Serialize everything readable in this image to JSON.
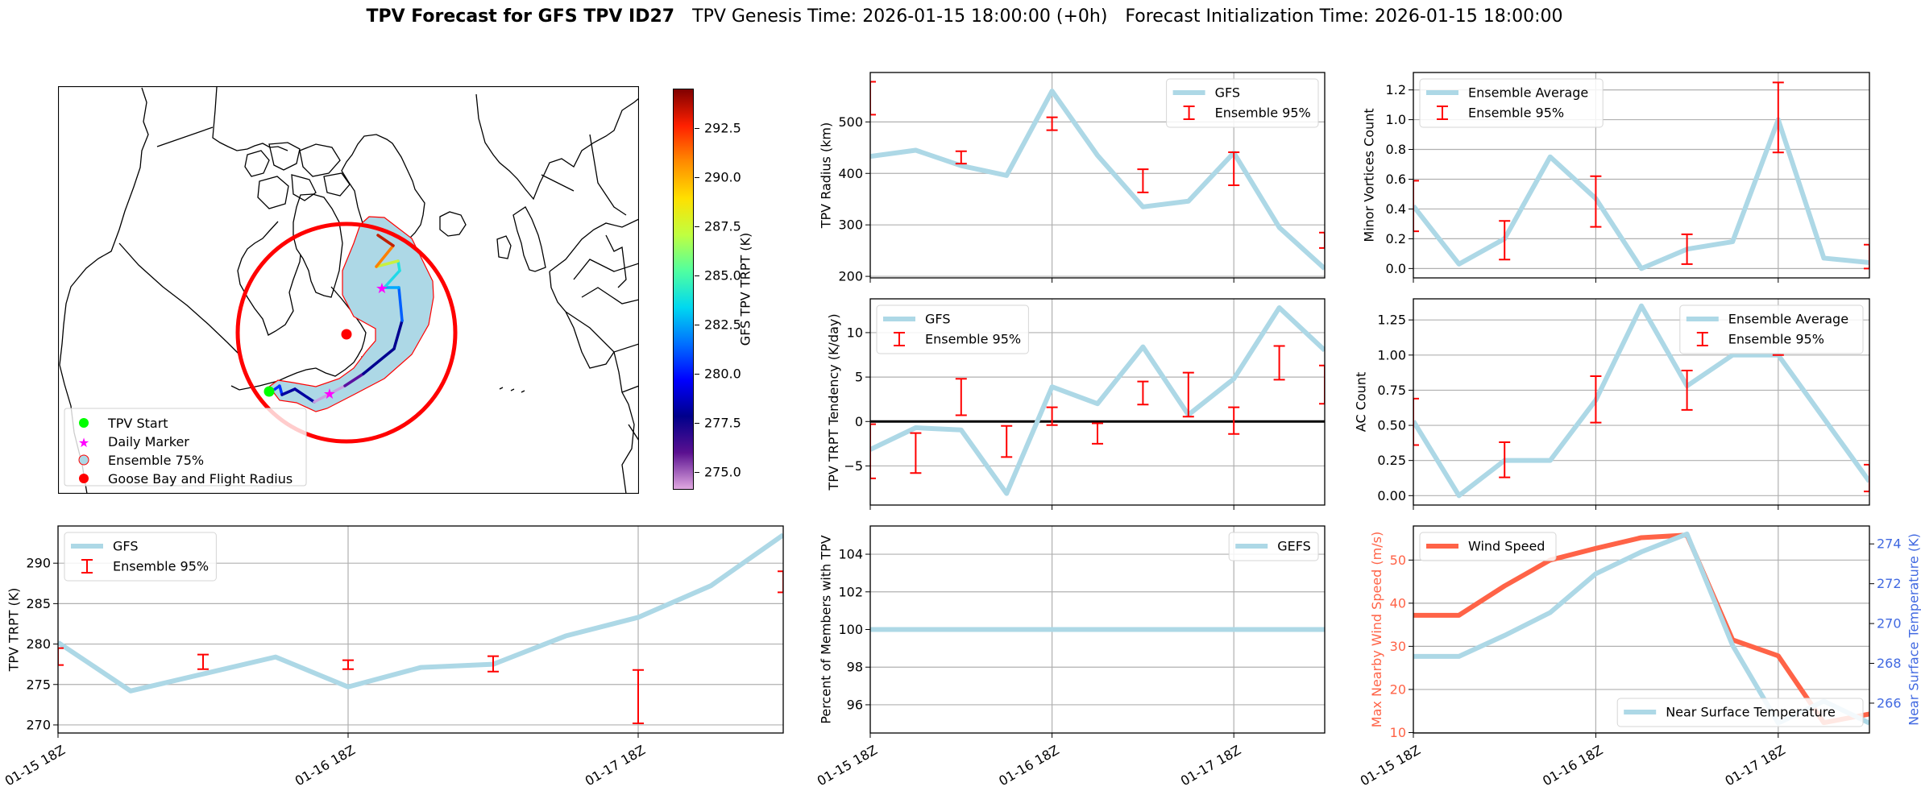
{
  "title": {
    "main": "TPV Forecast for GFS TPV ID27",
    "genesis": "TPV Genesis Time: 2026-01-15 18:00:00 (+0h)",
    "init": "Forecast Initialization Time: 2026-01-15 18:00:00"
  },
  "map": {
    "legend": [
      "TPV Start",
      "Daily Marker",
      "Ensemble 75%",
      "Goose Bay and Flight Radius"
    ],
    "colors": {
      "start": "#00ff00",
      "daily_marker": "#ff00ff",
      "ensemble_fill": "#add8e6",
      "ensemble_edge": "#ff0000",
      "goose_bay": "#ff0000"
    },
    "track_segment_colors": [
      "#0030ff",
      "#0000a0",
      "#0000a0",
      "#c8a0e0",
      "#c8a0e0",
      "#5a10a0",
      "#000090",
      "#000090",
      "#0060ff",
      "#00a8ff",
      "#20d8e8",
      "#20e0e0",
      "#c8f040",
      "#ff8000",
      "#c02000"
    ]
  },
  "colorbar": {
    "label": "GFS TPV TRPT (K)",
    "range": [
      274.1,
      294.5
    ],
    "ticks": [
      275.0,
      277.5,
      280.0,
      282.5,
      285.0,
      287.5,
      290.0,
      292.5
    ],
    "ticklabels": [
      "275.0",
      "277.5",
      "280.0",
      "282.5",
      "285.0",
      "287.5",
      "290.0",
      "292.5"
    ],
    "colors": [
      "#e0a8e0",
      "#5a1090",
      "#00008b",
      "#0000ff",
      "#0070ff",
      "#00d8f0",
      "#50ffa0",
      "#c0ff40",
      "#ffe000",
      "#ff8c00",
      "#ff2000",
      "#800000"
    ]
  },
  "chart_data": [
    {
      "type": "line",
      "ylabel": "TPV Radius (km)",
      "xlim": [
        "2026-01-15 18:00",
        "2026-01-18 06:00"
      ],
      "xticks": [
        "2026-01-15 18:00",
        "2026-01-16 18:00",
        "2026-01-17 18:00"
      ],
      "ylim": [
        197,
        596
      ],
      "yticks": [
        200,
        300,
        400,
        500
      ],
      "yticklabels": [
        "200",
        "300",
        "400",
        "500"
      ],
      "grid": true,
      "legend": "upper right",
      "series": [
        {
          "name": "GFS",
          "color": "#add8e6",
          "x": [
            "2026-01-15 18:00",
            "2026-01-16 00:00",
            "2026-01-16 06:00",
            "2026-01-16 12:00",
            "2026-01-16 18:00",
            "2026-01-17 00:00",
            "2026-01-17 06:00",
            "2026-01-17 12:00",
            "2026-01-17 18:00",
            "2026-01-18 00:00",
            "2026-01-18 06:00"
          ],
          "values": [
            433,
            445,
            415,
            396,
            560,
            435,
            335,
            346,
            440,
            295,
            215
          ]
        }
      ],
      "errorbars": {
        "name": "Ensemble 95%",
        "color": "#ff0000",
        "x": [
          "2026-01-15 18:00",
          "2026-01-16 06:00",
          "2026-01-16 18:00",
          "2026-01-17 06:00",
          "2026-01-17 18:00",
          "2026-01-18 06:00"
        ],
        "low": [
          514,
          419,
          484,
          363,
          377,
          255
        ],
        "high": [
          578,
          443,
          509,
          408,
          441,
          285
        ]
      }
    },
    {
      "type": "line",
      "ylabel": "TPV TRPT Tendency (K/day)",
      "xlim": [
        "2026-01-15 18:00",
        "2026-01-18 06:00"
      ],
      "xticks": [
        "2026-01-15 18:00",
        "2026-01-16 18:00",
        "2026-01-17 18:00"
      ],
      "ylim": [
        -9.4,
        13.8
      ],
      "yticks": [
        -5,
        0,
        5,
        10
      ],
      "yticklabels": [
        "−5",
        "0",
        "5",
        "10"
      ],
      "hline": 0,
      "grid": true,
      "legend": "upper left",
      "series": [
        {
          "name": "GFS",
          "color": "#add8e6",
          "x": [
            "2026-01-15 18:00",
            "2026-01-16 00:00",
            "2026-01-16 06:00",
            "2026-01-16 12:00",
            "2026-01-16 18:00",
            "2026-01-17 00:00",
            "2026-01-17 06:00",
            "2026-01-17 12:00",
            "2026-01-17 18:00",
            "2026-01-18 00:00",
            "2026-01-18 06:00"
          ],
          "values": [
            -3.15,
            -0.7,
            -0.95,
            -8.1,
            3.9,
            2.0,
            8.4,
            0.75,
            4.8,
            12.8,
            8.0
          ]
        }
      ],
      "errorbars": {
        "name": "Ensemble 95%",
        "color": "#ff0000",
        "x": [
          "2026-01-15 18:00",
          "2026-01-16 00:00",
          "2026-01-16 06:00",
          "2026-01-16 12:00",
          "2026-01-16 18:00",
          "2026-01-17 00:00",
          "2026-01-17 06:00",
          "2026-01-17 12:00",
          "2026-01-17 18:00",
          "2026-01-18 00:00",
          "2026-01-18 06:00"
        ],
        "low": [
          -6.4,
          -5.8,
          0.7,
          -4.0,
          -0.4,
          -2.5,
          1.9,
          0.55,
          -1.4,
          4.7,
          2.0
        ],
        "high": [
          -0.3,
          -1.3,
          4.8,
          -0.5,
          1.6,
          -0.2,
          4.5,
          5.5,
          1.6,
          8.5,
          6.3
        ]
      }
    },
    {
      "type": "line",
      "ylabel": "TPV TRPT (K)",
      "xlim": [
        "2026-01-15 18:00",
        "2026-01-18 06:00"
      ],
      "xticks": [
        "2026-01-15 18:00",
        "2026-01-16 18:00",
        "2026-01-17 18:00"
      ],
      "xticklabels": [
        "01-15 18Z",
        "01-16 18Z",
        "01-17 18Z"
      ],
      "ylim": [
        269.0,
        294.6
      ],
      "yticks": [
        270,
        275,
        280,
        285,
        290
      ],
      "yticklabels": [
        "270",
        "275",
        "280",
        "285",
        "290"
      ],
      "grid": true,
      "legend": "upper left",
      "series": [
        {
          "name": "GFS",
          "color": "#add8e6",
          "x": [
            "2026-01-15 18:00",
            "2026-01-16 00:00",
            "2026-01-16 06:00",
            "2026-01-16 12:00",
            "2026-01-16 18:00",
            "2026-01-17 00:00",
            "2026-01-17 06:00",
            "2026-01-17 12:00",
            "2026-01-17 18:00",
            "2026-01-18 00:00",
            "2026-01-18 06:00"
          ],
          "values": [
            280.2,
            274.2,
            276.3,
            278.4,
            274.7,
            277.1,
            277.5,
            281.0,
            283.3,
            287.2,
            293.5
          ]
        }
      ],
      "errorbars": {
        "name": "Ensemble 95%",
        "color": "#ff0000",
        "x": [
          "2026-01-15 18:00",
          "2026-01-16 06:00",
          "2026-01-16 18:00",
          "2026-01-17 06:00",
          "2026-01-17 18:00",
          "2026-01-18 06:00"
        ],
        "low": [
          277.4,
          276.9,
          276.9,
          276.6,
          270.2,
          286.4
        ],
        "high": [
          279.5,
          278.7,
          278.0,
          278.5,
          276.8,
          289.0
        ]
      }
    },
    {
      "type": "line",
      "ylabel": "Percent of Members with TPV",
      "xlim": [
        "2026-01-15 18:00",
        "2026-01-18 06:00"
      ],
      "xticks": [
        "2026-01-15 18:00",
        "2026-01-16 18:00",
        "2026-01-17 18:00"
      ],
      "xticklabels": [
        "01-15 18Z",
        "01-16 18Z",
        "01-17 18Z"
      ],
      "ylim": [
        94.5,
        105.5
      ],
      "yticks": [
        96,
        98,
        100,
        102,
        104
      ],
      "yticklabels": [
        "96",
        "98",
        "100",
        "102",
        "104"
      ],
      "grid": true,
      "legend": "upper right",
      "series": [
        {
          "name": "GEFS",
          "color": "#add8e6",
          "x": [
            "2026-01-15 18:00",
            "2026-01-16 00:00",
            "2026-01-16 06:00",
            "2026-01-16 12:00",
            "2026-01-16 18:00",
            "2026-01-17 00:00",
            "2026-01-17 06:00",
            "2026-01-17 12:00",
            "2026-01-17 18:00",
            "2026-01-18 00:00",
            "2026-01-18 06:00"
          ],
          "values": [
            100,
            100,
            100,
            100,
            100,
            100,
            100,
            100,
            100,
            100,
            100
          ]
        }
      ]
    },
    {
      "type": "line",
      "ylabel": "Minor Vortices Count",
      "xlim": [
        "2026-01-15 18:00",
        "2026-01-18 06:00"
      ],
      "xticks": [
        "2026-01-15 18:00",
        "2026-01-16 18:00",
        "2026-01-17 18:00"
      ],
      "ylim": [
        -0.063,
        1.317
      ],
      "yticks": [
        0,
        0.2,
        0.4,
        0.6,
        0.8,
        1.0,
        1.2
      ],
      "yticklabels": [
        "0.0",
        "0.2",
        "0.4",
        "0.6",
        "0.8",
        "1.0",
        "1.2"
      ],
      "grid": true,
      "legend": "upper left",
      "series": [
        {
          "name": "Ensemble Average",
          "color": "#add8e6",
          "x": [
            "2026-01-15 18:00",
            "2026-01-16 00:00",
            "2026-01-16 06:00",
            "2026-01-16 12:00",
            "2026-01-16 18:00",
            "2026-01-17 00:00",
            "2026-01-17 06:00",
            "2026-01-17 12:00",
            "2026-01-17 18:00",
            "2026-01-18 00:00",
            "2026-01-18 06:00"
          ],
          "values": [
            0.42,
            0.03,
            0.2,
            0.75,
            0.47,
            0.0,
            0.13,
            0.18,
            1.0,
            0.07,
            0.04
          ]
        }
      ],
      "errorbars": {
        "name": "Ensemble 95%",
        "color": "#ff0000",
        "x": [
          "2026-01-15 18:00",
          "2026-01-16 06:00",
          "2026-01-16 18:00",
          "2026-01-17 06:00",
          "2026-01-17 18:00",
          "2026-01-18 06:00"
        ],
        "low": [
          0.25,
          0.06,
          0.28,
          0.03,
          0.78,
          0.0
        ],
        "high": [
          0.59,
          0.32,
          0.62,
          0.23,
          1.25,
          0.16
        ]
      }
    },
    {
      "type": "line",
      "ylabel": "AC Count",
      "xlim": [
        "2026-01-15 18:00",
        "2026-01-18 06:00"
      ],
      "xticks": [
        "2026-01-15 18:00",
        "2026-01-16 18:00",
        "2026-01-17 18:00"
      ],
      "ylim": [
        -0.067,
        1.4
      ],
      "yticks": [
        0,
        0.25,
        0.5,
        0.75,
        1.0,
        1.25
      ],
      "yticklabels": [
        "0.00",
        "0.25",
        "0.50",
        "0.75",
        "1.00",
        "1.25"
      ],
      "grid": true,
      "legend": "upper right",
      "series": [
        {
          "name": "Ensemble Average",
          "color": "#add8e6",
          "x": [
            "2026-01-15 18:00",
            "2026-01-16 00:00",
            "2026-01-16 06:00",
            "2026-01-16 12:00",
            "2026-01-16 18:00",
            "2026-01-17 00:00",
            "2026-01-17 06:00",
            "2026-01-17 12:00",
            "2026-01-17 18:00",
            "2026-01-18 00:00",
            "2026-01-18 06:00"
          ],
          "values": [
            0.53,
            0.0,
            0.25,
            0.25,
            0.68,
            1.35,
            0.78,
            1.0,
            1.0,
            0.55,
            0.1
          ]
        }
      ],
      "errorbars": {
        "name": "Ensemble 95%",
        "color": "#ff0000",
        "x": [
          "2026-01-15 18:00",
          "2026-01-16 06:00",
          "2026-01-16 18:00",
          "2026-01-17 06:00",
          "2026-01-17 18:00",
          "2026-01-18 06:00"
        ],
        "low": [
          0.36,
          0.13,
          0.52,
          0.61,
          1.0,
          0.03
        ],
        "high": [
          0.69,
          0.38,
          0.85,
          0.89,
          1.0,
          0.22
        ]
      }
    },
    {
      "type": "line",
      "ylabel": "Max Nearby Wind Speed (m/s)",
      "ylabel_color": "#ff6347",
      "xlim": [
        "2026-01-15 18:00",
        "2026-01-18 06:00"
      ],
      "xticks": [
        "2026-01-15 18:00",
        "2026-01-16 18:00",
        "2026-01-17 18:00"
      ],
      "xticklabels": [
        "01-15 18Z",
        "01-16 18Z",
        "01-17 18Z"
      ],
      "ylim": [
        9.9,
        57.9
      ],
      "yticks": [
        10,
        20,
        30,
        40,
        50
      ],
      "yticklabels": [
        "10",
        "20",
        "30",
        "40",
        "50"
      ],
      "grid": true,
      "legend": "upper left",
      "series": [
        {
          "name": "Wind Speed",
          "color": "#ff6347",
          "x": [
            "2026-01-15 18:00",
            "2026-01-16 00:00",
            "2026-01-16 06:00",
            "2026-01-16 12:00",
            "2026-01-16 18:00",
            "2026-01-17 00:00",
            "2026-01-17 06:00",
            "2026-01-17 12:00",
            "2026-01-17 18:00",
            "2026-01-18 00:00",
            "2026-01-18 06:00"
          ],
          "values": [
            37.2,
            37.2,
            44.0,
            50.0,
            52.7,
            55.2,
            55.8,
            31.5,
            27.8,
            12.3,
            14.3
          ]
        }
      ],
      "twin": {
        "ylabel": "Near Surface Temperature (K)",
        "ylabel_color": "#4169e1",
        "ylim": [
          264.5,
          274.9
        ],
        "yticks": [
          266,
          268,
          270,
          272,
          274
        ],
        "yticklabels": [
          "266",
          "268",
          "270",
          "272",
          "274"
        ],
        "legend": "lower right",
        "series": [
          {
            "name": "Near Surface Temperature",
            "color": "#add8e6",
            "x": [
              "2026-01-15 18:00",
              "2026-01-16 00:00",
              "2026-01-16 06:00",
              "2026-01-16 12:00",
              "2026-01-16 18:00",
              "2026-01-17 00:00",
              "2026-01-17 06:00",
              "2026-01-17 12:00",
              "2026-01-17 18:00",
              "2026-01-18 00:00",
              "2026-01-18 06:00"
            ],
            "values": [
              268.35,
              268.35,
              269.4,
              270.55,
              272.5,
              273.6,
              274.5,
              268.9,
              265.0,
              266.1,
              265.0
            ]
          }
        ]
      }
    }
  ]
}
